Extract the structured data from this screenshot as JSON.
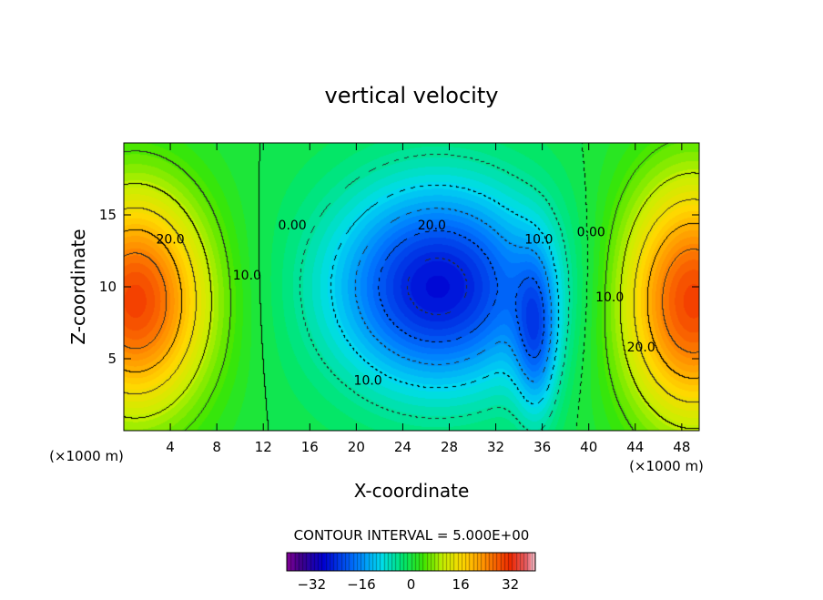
{
  "chart_data": {
    "type": "heatmap",
    "title": "vertical velocity",
    "xlabel": "X-coordinate",
    "ylabel": "Z-coordinate",
    "x_unit_left": "(×1000 m)",
    "x_unit_right": "(×1000 m)",
    "xlim": [
      0,
      49.5
    ],
    "ylim": [
      0,
      20
    ],
    "xticks": [
      4,
      8,
      12,
      16,
      20,
      24,
      28,
      32,
      36,
      40,
      44,
      48
    ],
    "yticks": [
      5,
      10,
      15
    ],
    "contour_interval_text": "CONTOUR INTERVAL = 5.000E+00",
    "contour_interval": 5.0,
    "color_range": [
      -40,
      40
    ],
    "colorbar_ticks": [
      -32,
      -16,
      0,
      16,
      32
    ],
    "contour_labels": [
      {
        "text": "20.0",
        "x": 4,
        "z": 13
      },
      {
        "text": "10.0",
        "x": 10.6,
        "z": 10.5
      },
      {
        "text": "0.00",
        "x": 14.5,
        "z": 14
      },
      {
        "text": "20.0",
        "x": 26.5,
        "z": 14
      },
      {
        "text": "10.0",
        "x": 35.7,
        "z": 13
      },
      {
        "text": "0.00",
        "x": 40.2,
        "z": 13.5
      },
      {
        "text": "10.0",
        "x": 41.8,
        "z": 9
      },
      {
        "text": "20.0",
        "x": 44.5,
        "z": 5.5
      },
      {
        "text": "10.0",
        "x": 21,
        "z": 3.2
      }
    ],
    "cells": [
      {
        "name": "updraft-left",
        "x": 1,
        "z": 9,
        "amp": 30,
        "sx": 4.5,
        "sz": 5.5
      },
      {
        "name": "downdraft-mid",
        "x": 27,
        "z": 10,
        "amp": -27,
        "sx": 6.5,
        "sz": 5.0
      },
      {
        "name": "downdraft-narrow",
        "x": 35.5,
        "z": 6.5,
        "amp": -14,
        "sx": 1.3,
        "sz": 4.0
      },
      {
        "name": "updraft-right",
        "x": 49,
        "z": 9,
        "amp": 30,
        "sx": 4.5,
        "sz": 6.0
      }
    ]
  }
}
